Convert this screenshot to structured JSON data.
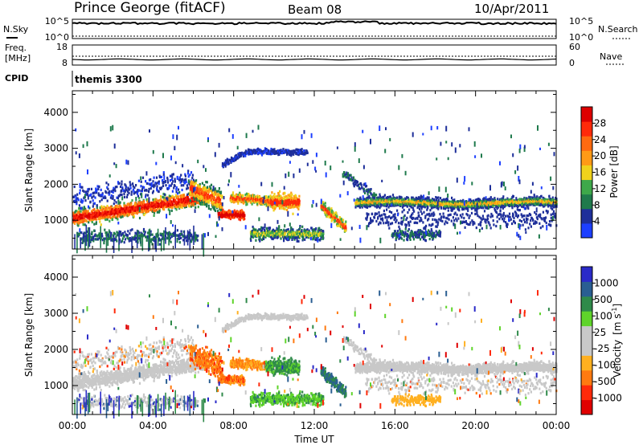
{
  "header": {
    "station": "Prince George (fitACF)",
    "beam": "Beam 08",
    "date": "10/Apr/2011"
  },
  "panels": {
    "noise": {
      "left_label": "N.Sky",
      "right_label": "N.Search",
      "left_ticks": [
        "10^5",
        "10^0"
      ],
      "right_ticks": [
        "10^5",
        "10^0"
      ]
    },
    "freq": {
      "left_label_1": "Freq.",
      "left_label_2": "[MHz]",
      "right_label": "Nave",
      "left_ticks": [
        "18",
        "8"
      ],
      "right_ticks": [
        "60",
        "0"
      ]
    },
    "cpid": {
      "label": "CPID",
      "value": "themis 3300"
    }
  },
  "colors": {
    "power": [
      "#1d3fff",
      "#1e2f9a",
      "#1f7a4c",
      "#3ea84a",
      "#f0d21c",
      "#ff9a16",
      "#ff6a10",
      "#ff2a0a",
      "#dd0000"
    ],
    "velocity": [
      "#2a2ac8",
      "#2a5e92",
      "#2f8a4a",
      "#5fd42a",
      "#c8c8c8",
      "#c8c8c8",
      "#ffb020",
      "#ff7a10",
      "#ff2a0a",
      "#e00000"
    ]
  },
  "chart_data": [
    {
      "type": "heatmap",
      "name": "power",
      "ylabel": "Slant Range [km]",
      "ylim": [
        200,
        4600
      ],
      "yticks": [
        "1000",
        "2000",
        "3000",
        "4000"
      ],
      "xlim": [
        0,
        24
      ],
      "colorbar_label": "Power [dB]",
      "colorbar_ticks": [
        "4",
        "8",
        "12",
        "16",
        "20",
        "24",
        "28"
      ],
      "colorbar_range": [
        0,
        32
      ]
    },
    {
      "type": "heatmap",
      "name": "velocity",
      "ylabel": "Slant Range [km]",
      "ylim": [
        200,
        4600
      ],
      "yticks": [
        "1000",
        "2000",
        "3000",
        "4000"
      ],
      "xlim": [
        0,
        24
      ],
      "xlabel": "Time UT",
      "xticks": [
        "00:00",
        "04:00",
        "08:00",
        "12:00",
        "16:00",
        "20:00",
        "00:00"
      ],
      "colorbar_label": "Velocity",
      "colorbar_unit": "[m s",
      "colorbar_sup": "-1",
      "colorbar_unit_end": "]",
      "colorbar_ticks": [
        "1000",
        "500",
        "100",
        "25",
        "-25",
        "-100",
        "-500",
        "-1000"
      ]
    }
  ]
}
